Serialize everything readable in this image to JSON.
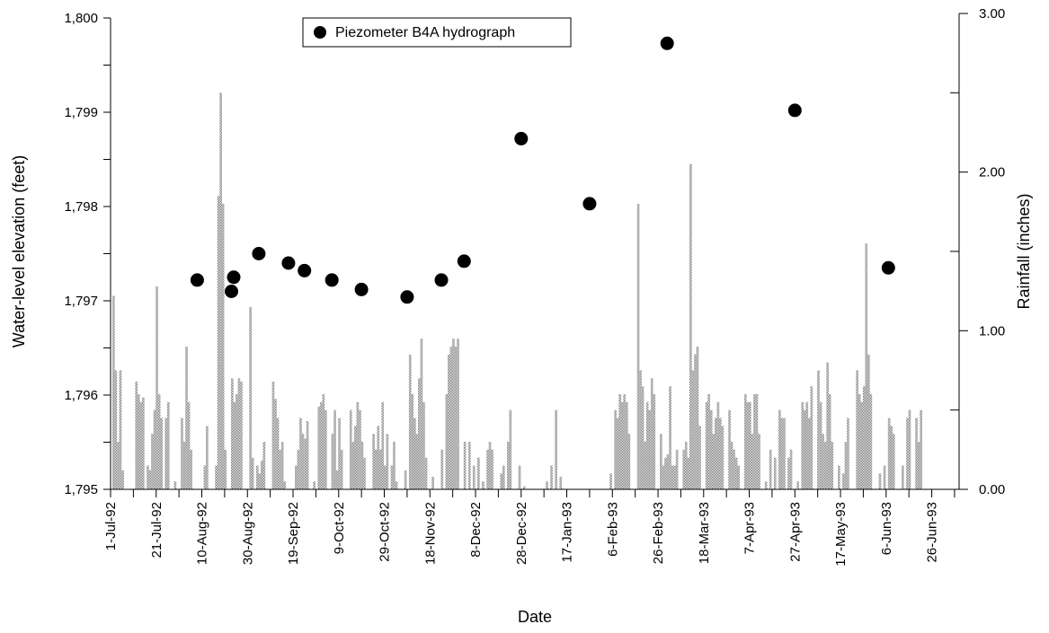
{
  "chart_data": {
    "type": "bar+scatter",
    "xlabel": "Date",
    "ylabel_left": "Water-level elevation (feet)",
    "ylabel_right": "Rainfall (inches)",
    "x_tick_labels": [
      "1-Jul-92",
      "21-Jul-92",
      "10-Aug-92",
      "30-Aug-92",
      "19-Sep-92",
      "9-Oct-92",
      "29-Oct-92",
      "18-Nov-92",
      "8-Dec-92",
      "28-Dec-92",
      "17-Jan-93",
      "6-Feb-93",
      "26-Feb-93",
      "18-Mar-93",
      "7-Apr-93",
      "27-Apr-93",
      "17-May-93",
      "6-Jun-93",
      "26-Jun-93"
    ],
    "x_tick_day_offsets": [
      0,
      20,
      40,
      60,
      80,
      100,
      120,
      140,
      160,
      180,
      200,
      220,
      240,
      260,
      280,
      300,
      320,
      340,
      360
    ],
    "x_range_days": [
      0,
      372
    ],
    "y_left": {
      "range": [
        1795,
        1800
      ],
      "ticks": [
        1795,
        1796,
        1797,
        1798,
        1799,
        1800
      ],
      "tick_labels": [
        "1,795",
        "1,796",
        "1,797",
        "1,798",
        "1,799",
        "1,800"
      ],
      "minor_ticks": [
        1795.5,
        1796.5,
        1797.5,
        1798.5,
        1799.5
      ]
    },
    "y_right": {
      "range": [
        0,
        3
      ],
      "ticks": [
        0,
        1,
        2,
        3
      ],
      "tick_labels": [
        "0.00",
        "1.00",
        "2.00",
        "3.00"
      ],
      "minor_ticks": [
        0.5,
        1.5,
        2.5
      ]
    },
    "legend": {
      "label": "Piezometer B4A hydrograph",
      "position": "top-center"
    },
    "series": [
      {
        "name": "Piezometer B4A hydrograph",
        "type": "scatter",
        "axis": "left",
        "color": "#000000",
        "points": [
          {
            "day": 38,
            "y": 1797.22
          },
          {
            "day": 53,
            "y": 1797.1
          },
          {
            "day": 54,
            "y": 1797.25
          },
          {
            "day": 65,
            "y": 1797.5
          },
          {
            "day": 78,
            "y": 1797.4
          },
          {
            "day": 85,
            "y": 1797.32
          },
          {
            "day": 97,
            "y": 1797.22
          },
          {
            "day": 110,
            "y": 1797.12
          },
          {
            "day": 130,
            "y": 1797.04
          },
          {
            "day": 145,
            "y": 1797.22
          },
          {
            "day": 155,
            "y": 1797.42
          },
          {
            "day": 180,
            "y": 1798.72
          },
          {
            "day": 210,
            "y": 1798.03
          },
          {
            "day": 244,
            "y": 1799.73
          },
          {
            "day": 300,
            "y": 1799.02
          },
          {
            "day": 341,
            "y": 1797.35
          }
        ]
      },
      {
        "name": "Rainfall",
        "type": "bar",
        "axis": "right",
        "color": "#a8a8a8",
        "bars": [
          [
            0,
            1.22
          ],
          [
            1,
            0.75
          ],
          [
            2,
            0.3
          ],
          [
            3,
            0.75
          ],
          [
            4,
            0.12
          ],
          [
            10,
            0.68
          ],
          [
            11,
            0.6
          ],
          [
            12,
            0.55
          ],
          [
            13,
            0.58
          ],
          [
            15,
            0.15
          ],
          [
            16,
            0.12
          ],
          [
            17,
            0.35
          ],
          [
            18,
            0.5
          ],
          [
            19,
            1.28
          ],
          [
            20,
            0.6
          ],
          [
            21,
            0.45
          ],
          [
            23,
            0.45
          ],
          [
            24,
            0.55
          ],
          [
            27,
            0.05
          ],
          [
            30,
            0.45
          ],
          [
            31,
            0.3
          ],
          [
            32,
            0.9
          ],
          [
            33,
            0.55
          ],
          [
            34,
            0.25
          ],
          [
            40,
            0.15
          ],
          [
            41,
            0.4
          ],
          [
            45,
            0.15
          ],
          [
            46,
            1.85
          ],
          [
            47,
            2.5
          ],
          [
            48,
            1.8
          ],
          [
            49,
            0.25
          ],
          [
            52,
            0.7
          ],
          [
            53,
            0.55
          ],
          [
            54,
            0.6
          ],
          [
            55,
            0.7
          ],
          [
            56,
            0.68
          ],
          [
            60,
            1.15
          ],
          [
            61,
            0.2
          ],
          [
            63,
            0.15
          ],
          [
            64,
            0.1
          ],
          [
            65,
            0.18
          ],
          [
            66,
            0.3
          ],
          [
            70,
            0.68
          ],
          [
            71,
            0.57
          ],
          [
            72,
            0.45
          ],
          [
            73,
            0.25
          ],
          [
            74,
            0.3
          ],
          [
            75,
            0.05
          ],
          [
            80,
            0.15
          ],
          [
            81,
            0.25
          ],
          [
            82,
            0.45
          ],
          [
            83,
            0.35
          ],
          [
            84,
            0.32
          ],
          [
            85,
            0.43
          ],
          [
            88,
            0.05
          ],
          [
            90,
            0.52
          ],
          [
            91,
            0.55
          ],
          [
            92,
            0.6
          ],
          [
            93,
            0.5
          ],
          [
            96,
            0.35
          ],
          [
            97,
            0.5
          ],
          [
            98,
            0.12
          ],
          [
            99,
            0.45
          ],
          [
            100,
            0.25
          ],
          [
            104,
            0.5
          ],
          [
            105,
            0.3
          ],
          [
            106,
            0.4
          ],
          [
            107,
            0.55
          ],
          [
            108,
            0.5
          ],
          [
            109,
            0.3
          ],
          [
            110,
            0.2
          ],
          [
            114,
            0.35
          ],
          [
            115,
            0.25
          ],
          [
            116,
            0.4
          ],
          [
            117,
            0.25
          ],
          [
            118,
            0.55
          ],
          [
            119,
            0.15
          ],
          [
            120,
            0.35
          ],
          [
            122,
            0.15
          ],
          [
            123,
            0.3
          ],
          [
            124,
            0.05
          ],
          [
            128,
            0.12
          ],
          [
            130,
            0.85
          ],
          [
            131,
            0.6
          ],
          [
            132,
            0.45
          ],
          [
            133,
            0.35
          ],
          [
            134,
            0.7
          ],
          [
            135,
            0.95
          ],
          [
            136,
            0.55
          ],
          [
            137,
            0.2
          ],
          [
            140,
            0.08
          ],
          [
            144,
            0.25
          ],
          [
            146,
            0.6
          ],
          [
            147,
            0.85
          ],
          [
            148,
            0.9
          ],
          [
            149,
            0.95
          ],
          [
            150,
            0.9
          ],
          [
            151,
            0.95
          ],
          [
            154,
            0.3
          ],
          [
            156,
            0.3
          ],
          [
            158,
            0.15
          ],
          [
            160,
            0.2
          ],
          [
            162,
            0.05
          ],
          [
            164,
            0.25
          ],
          [
            165,
            0.3
          ],
          [
            166,
            0.25
          ],
          [
            170,
            0.1
          ],
          [
            171,
            0.15
          ],
          [
            173,
            0.3
          ],
          [
            174,
            0.5
          ],
          [
            178,
            0.15
          ],
          [
            180,
            0.02
          ],
          [
            190,
            0.05
          ],
          [
            192,
            0.15
          ],
          [
            194,
            0.5
          ],
          [
            196,
            0.08
          ],
          [
            218,
            0.1
          ],
          [
            220,
            0.5
          ],
          [
            221,
            0.45
          ],
          [
            222,
            0.6
          ],
          [
            223,
            0.55
          ],
          [
            224,
            0.6
          ],
          [
            225,
            0.55
          ],
          [
            226,
            0.35
          ],
          [
            230,
            1.8
          ],
          [
            231,
            0.75
          ],
          [
            232,
            0.65
          ],
          [
            233,
            0.3
          ],
          [
            234,
            0.55
          ],
          [
            235,
            0.5
          ],
          [
            236,
            0.7
          ],
          [
            237,
            0.6
          ],
          [
            240,
            0.35
          ],
          [
            241,
            0.15
          ],
          [
            242,
            0.2
          ],
          [
            243,
            0.22
          ],
          [
            244,
            0.65
          ],
          [
            245,
            0.15
          ],
          [
            246,
            0.15
          ],
          [
            247,
            0.25
          ],
          [
            250,
            0.25
          ],
          [
            251,
            0.3
          ],
          [
            252,
            0.2
          ],
          [
            253,
            2.05
          ],
          [
            254,
            0.75
          ],
          [
            255,
            0.85
          ],
          [
            256,
            0.9
          ],
          [
            257,
            0.4
          ],
          [
            260,
            0.55
          ],
          [
            261,
            0.6
          ],
          [
            262,
            0.5
          ],
          [
            263,
            0.35
          ],
          [
            264,
            0.45
          ],
          [
            265,
            0.55
          ],
          [
            266,
            0.45
          ],
          [
            267,
            0.4
          ],
          [
            270,
            0.5
          ],
          [
            271,
            0.3
          ],
          [
            272,
            0.25
          ],
          [
            273,
            0.2
          ],
          [
            274,
            0.15
          ],
          [
            277,
            0.6
          ],
          [
            278,
            0.55
          ],
          [
            279,
            0.55
          ],
          [
            280,
            0.35
          ],
          [
            281,
            0.6
          ],
          [
            282,
            0.6
          ],
          [
            283,
            0.35
          ],
          [
            286,
            0.05
          ],
          [
            288,
            0.25
          ],
          [
            290,
            0.2
          ],
          [
            292,
            0.5
          ],
          [
            293,
            0.45
          ],
          [
            294,
            0.45
          ],
          [
            296,
            0.2
          ],
          [
            297,
            0.25
          ],
          [
            300,
            0.05
          ],
          [
            302,
            0.55
          ],
          [
            303,
            0.5
          ],
          [
            304,
            0.55
          ],
          [
            305,
            0.45
          ],
          [
            306,
            0.65
          ],
          [
            309,
            0.75
          ],
          [
            310,
            0.55
          ],
          [
            311,
            0.35
          ],
          [
            312,
            0.3
          ],
          [
            313,
            0.8
          ],
          [
            314,
            0.6
          ],
          [
            315,
            0.3
          ],
          [
            318,
            0.15
          ],
          [
            320,
            0.1
          ],
          [
            321,
            0.3
          ],
          [
            322,
            0.45
          ],
          [
            326,
            0.75
          ],
          [
            327,
            0.6
          ],
          [
            328,
            0.55
          ],
          [
            329,
            0.65
          ],
          [
            330,
            1.55
          ],
          [
            331,
            0.85
          ],
          [
            332,
            0.6
          ],
          [
            336,
            0.1
          ],
          [
            338,
            0.15
          ],
          [
            340,
            0.45
          ],
          [
            341,
            0.4
          ],
          [
            342,
            0.35
          ],
          [
            346,
            0.15
          ],
          [
            348,
            0.45
          ],
          [
            349,
            0.5
          ],
          [
            352,
            0.45
          ],
          [
            353,
            0.3
          ],
          [
            354,
            0.5
          ]
        ]
      }
    ]
  }
}
